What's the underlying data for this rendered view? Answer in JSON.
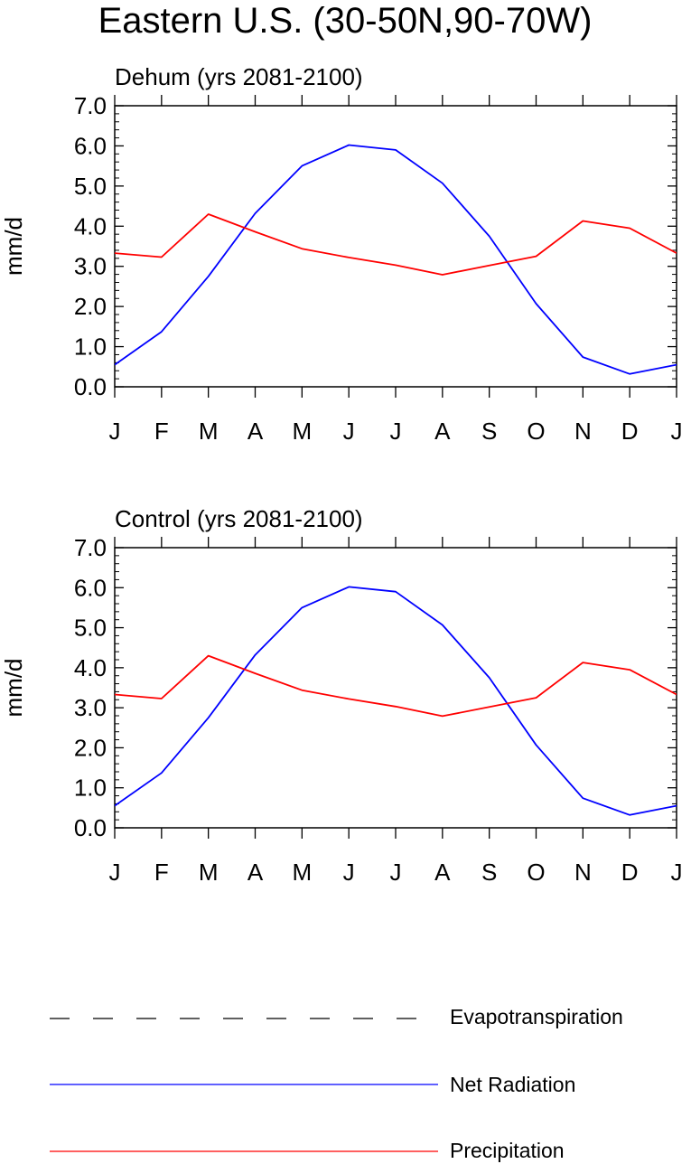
{
  "figure": {
    "title": "Eastern U.S. (30-50N,90-70W)"
  },
  "chart_data": [
    {
      "type": "line",
      "title": "Dehum (yrs 2081-2100)",
      "ylabel": "mm/d",
      "xlabel": "",
      "categories": [
        "J",
        "F",
        "M",
        "A",
        "M",
        "J",
        "J",
        "A",
        "S",
        "O",
        "N",
        "D",
        "J"
      ],
      "ylim": [
        0,
        7
      ],
      "yticks": [
        "0.0",
        "1.0",
        "2.0",
        "3.0",
        "4.0",
        "5.0",
        "6.0",
        "7.0"
      ],
      "grid": false,
      "series": [
        {
          "name": "Net Radiation",
          "color": "#0000ff",
          "values": [
            0.55,
            1.37,
            2.75,
            4.32,
            5.5,
            6.02,
            5.9,
            5.07,
            3.75,
            2.07,
            0.74,
            0.32,
            0.55
          ]
        },
        {
          "name": "Precipitation",
          "color": "#ff0000",
          "values": [
            3.33,
            3.23,
            4.3,
            3.86,
            3.44,
            3.22,
            3.03,
            2.79,
            3.02,
            3.25,
            4.13,
            3.95,
            3.33
          ]
        }
      ]
    },
    {
      "type": "line",
      "title": "Control (yrs 2081-2100)",
      "ylabel": "mm/d",
      "xlabel": "",
      "categories": [
        "J",
        "F",
        "M",
        "A",
        "M",
        "J",
        "J",
        "A",
        "S",
        "O",
        "N",
        "D",
        "J"
      ],
      "ylim": [
        0,
        7
      ],
      "yticks": [
        "0.0",
        "1.0",
        "2.0",
        "3.0",
        "4.0",
        "5.0",
        "6.0",
        "7.0"
      ],
      "grid": false,
      "series": [
        {
          "name": "Net Radiation",
          "color": "#0000ff",
          "values": [
            0.55,
            1.37,
            2.75,
            4.32,
            5.5,
            6.02,
            5.9,
            5.07,
            3.75,
            2.07,
            0.74,
            0.32,
            0.55
          ]
        },
        {
          "name": "Precipitation",
          "color": "#ff0000",
          "values": [
            3.33,
            3.23,
            4.3,
            3.86,
            3.44,
            3.22,
            3.03,
            2.79,
            3.02,
            3.25,
            4.13,
            3.95,
            3.33
          ]
        }
      ]
    }
  ],
  "legend": {
    "placement": "bottom",
    "entries": [
      {
        "label": "Evapotranspiration",
        "color": "#000000",
        "style": "dashed"
      },
      {
        "label": "Net Radiation",
        "color": "#0000ff",
        "style": "solid"
      },
      {
        "label": "Precipitation",
        "color": "#ff0000",
        "style": "solid"
      }
    ]
  }
}
